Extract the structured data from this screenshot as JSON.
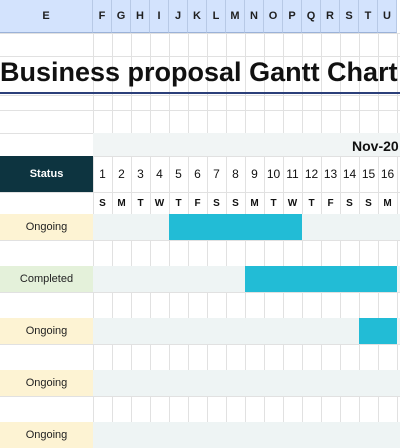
{
  "sheet": {
    "columns": [
      "E",
      "F",
      "G",
      "H",
      "I",
      "J",
      "K",
      "L",
      "M",
      "N",
      "O",
      "P",
      "Q",
      "R",
      "S",
      "T",
      "U"
    ],
    "title": "Business proposal Gantt Chart",
    "month_label": "Nov-20",
    "status_header": "Status",
    "days": [
      "1",
      "2",
      "3",
      "4",
      "5",
      "6",
      "7",
      "8",
      "9",
      "10",
      "11",
      "12",
      "13",
      "14",
      "15",
      "16"
    ],
    "weekdays": [
      "S",
      "M",
      "T",
      "W",
      "T",
      "F",
      "S",
      "S",
      "M",
      "T",
      "W",
      "T",
      "F",
      "S",
      "S",
      "M"
    ],
    "colors": {
      "status_header_bg": "#0d3440",
      "bar": "#22bcd6",
      "ongoing_bg": "#fdf3d3",
      "completed_bg": "#e4f1da",
      "track_bg": "#eef4f4"
    },
    "tasks": [
      {
        "status": "Ongoing",
        "start_day": 5,
        "end_day": 11
      },
      {
        "status": "Completed",
        "start_day": 9,
        "end_day": 16
      },
      {
        "status": "Ongoing",
        "start_day": 15,
        "end_day": 16
      },
      {
        "status": "Ongoing",
        "start_day": null,
        "end_day": null
      },
      {
        "status": "Ongoing",
        "start_day": null,
        "end_day": null
      }
    ]
  }
}
